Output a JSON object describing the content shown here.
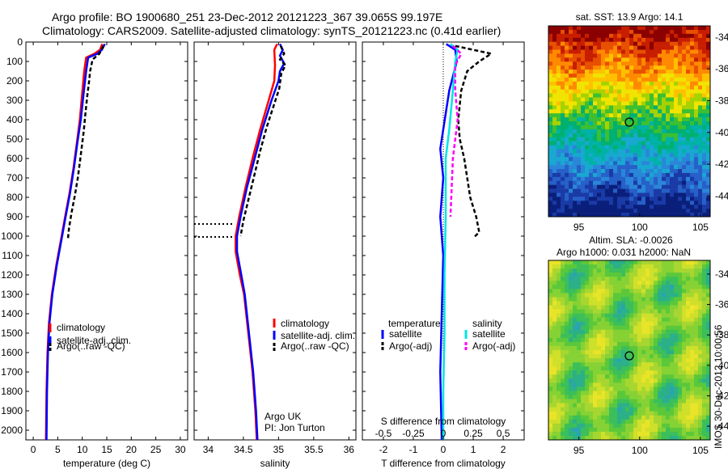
{
  "header": {
    "line1": "Argo profile: BO 1900680_251 23-Dec-2012 20121223_367 39.065S 99.197E",
    "line2": "Climatology: CARS2009. Satellite-adjusted climatology: synTS_20121223.nc (0.41d earlier)"
  },
  "colors": {
    "climatology": "#ff0000",
    "satellite": "#0000ff",
    "argo": "#000000",
    "sal_satellite": "#00e5e5",
    "sal_argo": "#ff00ff"
  },
  "depth_ticks": [
    "0",
    "100",
    "200",
    "300",
    "400",
    "500",
    "600",
    "700",
    "800",
    "900",
    "1000",
    "1100",
    "1200",
    "1300",
    "1400",
    "1500",
    "1600",
    "1700",
    "1800",
    "1900",
    "2000"
  ],
  "panels": {
    "temperature": {
      "xlabel": "temperature (deg C)",
      "ticks": [
        "0",
        "5",
        "10",
        "15",
        "20",
        "25",
        "30"
      ],
      "legend": [
        "climatology",
        "satellite-adj. clim.",
        "Argo(..raw -QC)"
      ]
    },
    "salinity": {
      "xlabel": "salinity",
      "ticks": [
        "34",
        "34.5",
        "35",
        "35.5",
        "36"
      ],
      "legend": [
        "climatology",
        "satellite-adj. clim.",
        "Argo(..raw -QC)"
      ],
      "annotation1": "Argo UK",
      "annotation2": "PI: Jon Turton"
    },
    "difference": {
      "xlabel": "T difference from climatology",
      "ticks": [
        "-2",
        "-1",
        "0",
        "1",
        "2"
      ],
      "top_label": "S difference from climatology",
      "top_ticks": [
        "-0.5",
        "-0.25",
        "0",
        "0.25",
        "0.5"
      ],
      "legend_t_title": "temperature",
      "legend_s_title": "salinity",
      "legend_t": [
        "satellite",
        "Argo(-adj)"
      ],
      "legend_s": [
        "satellite",
        "Argo(-adj)"
      ]
    }
  },
  "maps": {
    "sst_title": "sat. SST: 13.9 Argo: 14.1",
    "sla_title1": "Altim. SLA: -0.0026",
    "sla_title2": "Argo h1000: 0.031 h2000: NaN",
    "lat_ticks": [
      "-34",
      "-36",
      "-38",
      "-40",
      "-42",
      "-44"
    ],
    "lon_ticks": [
      "95",
      "100",
      "105"
    ],
    "side_text": "IMOS 30-Dec-2012 10:00:56"
  },
  "chart_data": [
    {
      "type": "line",
      "name": "temperature",
      "xlabel": "temperature (deg C)",
      "ylabel": "",
      "xlim": [
        -1.5,
        31.5
      ],
      "ylim": [
        2050,
        0
      ],
      "series": [
        {
          "name": "climatology",
          "color": "#ff0000",
          "points": [
            [
              14.1,
              10
            ],
            [
              13.6,
              40
            ],
            [
              12.5,
              60
            ],
            [
              10.8,
              80
            ],
            [
              10.4,
              150
            ],
            [
              10,
              260
            ],
            [
              9.5,
              400
            ],
            [
              8.9,
              520
            ],
            [
              8.2,
              650
            ],
            [
              7.4,
              780
            ],
            [
              6.5,
              900
            ],
            [
              5.8,
              1000
            ],
            [
              4.7,
              1150
            ],
            [
              3.8,
              1300
            ],
            [
              3.2,
              1450
            ],
            [
              2.9,
              1600
            ],
            [
              2.7,
              1800
            ],
            [
              2.6,
              2050
            ]
          ]
        },
        {
          "name": "satellite-adj. clim.",
          "color": "#0000ff",
          "points": [
            [
              14.6,
              10
            ],
            [
              14,
              40
            ],
            [
              13.1,
              60
            ],
            [
              11.2,
              80
            ],
            [
              10.8,
              150
            ],
            [
              10.3,
              260
            ],
            [
              9.7,
              400
            ],
            [
              9,
              520
            ],
            [
              8.3,
              650
            ],
            [
              7.5,
              780
            ],
            [
              6.6,
              900
            ],
            [
              5.9,
              1000
            ],
            [
              4.8,
              1150
            ],
            [
              3.9,
              1300
            ],
            [
              3.3,
              1450
            ],
            [
              3,
              1600
            ],
            [
              2.8,
              1800
            ],
            [
              2.7,
              2050
            ]
          ]
        },
        {
          "name": "Argo(..raw -QC)",
          "color": "#000000",
          "dashed": true,
          "points": [
            [
              14.3,
              20
            ],
            [
              13.5,
              60
            ],
            [
              12.1,
              90
            ],
            [
              11.6,
              150
            ],
            [
              11.4,
              200
            ],
            [
              11,
              280
            ],
            [
              10.6,
              380
            ],
            [
              10.3,
              460
            ],
            [
              9.9,
              540
            ],
            [
              9.5,
              620
            ],
            [
              9.1,
              700
            ],
            [
              8.5,
              790
            ],
            [
              7.8,
              880
            ],
            [
              7.3,
              960
            ],
            [
              7.1,
              1010
            ]
          ]
        }
      ]
    },
    {
      "type": "line",
      "name": "salinity",
      "xlabel": "salinity",
      "ylabel": "",
      "xlim": [
        33.8,
        36.1
      ],
      "ylim": [
        2050,
        0
      ],
      "series": [
        {
          "name": "climatology",
          "color": "#ff0000",
          "points": [
            [
              34.98,
              10
            ],
            [
              34.94,
              40
            ],
            [
              34.95,
              120
            ],
            [
              34.94,
              200
            ],
            [
              34.86,
              300
            ],
            [
              34.74,
              450
            ],
            [
              34.63,
              600
            ],
            [
              34.53,
              750
            ],
            [
              34.44,
              900
            ],
            [
              34.39,
              1000
            ],
            [
              34.39,
              1080
            ],
            [
              34.45,
              1200
            ],
            [
              34.51,
              1300
            ],
            [
              34.57,
              1500
            ],
            [
              34.63,
              1700
            ],
            [
              34.67,
              1900
            ],
            [
              34.69,
              2050
            ]
          ]
        },
        {
          "name": "satellite-adj. clim.",
          "color": "#0000ff",
          "points": [
            [
              35.02,
              10
            ],
            [
              35.06,
              40
            ],
            [
              35.02,
              70
            ],
            [
              35.08,
              110
            ],
            [
              35.02,
              150
            ],
            [
              35,
              200
            ],
            [
              34.9,
              300
            ],
            [
              34.77,
              450
            ],
            [
              34.66,
              600
            ],
            [
              34.55,
              750
            ],
            [
              34.46,
              900
            ],
            [
              34.41,
              1000
            ],
            [
              34.41,
              1080
            ],
            [
              34.47,
              1200
            ],
            [
              34.52,
              1300
            ],
            [
              34.58,
              1500
            ],
            [
              34.64,
              1700
            ],
            [
              34.68,
              1900
            ],
            [
              34.7,
              2050
            ]
          ]
        },
        {
          "name": "Argo(..raw -QC)",
          "color": "#000000",
          "dashed": true,
          "points": [
            [
              35.03,
              20
            ],
            [
              35.08,
              60
            ],
            [
              35.02,
              90
            ],
            [
              35.1,
              120
            ],
            [
              35.04,
              160
            ],
            [
              35.01,
              240
            ],
            [
              34.92,
              340
            ],
            [
              34.83,
              440
            ],
            [
              34.74,
              560
            ],
            [
              34.66,
              680
            ],
            [
              34.58,
              800
            ],
            [
              34.5,
              920
            ],
            [
              34.46,
              1000
            ]
          ]
        }
      ]
    },
    {
      "type": "line",
      "name": "difference",
      "xlabel": "T difference from climatology",
      "ylabel": "",
      "xlim": [
        -2.7,
        2.7
      ],
      "x2lim": [
        -0.675,
        0.675
      ],
      "ylim": [
        2050,
        0
      ],
      "series": [
        {
          "name": "temperature satellite",
          "color": "#0000ff",
          "points": [
            [
              0.1,
              10
            ],
            [
              0.4,
              40
            ],
            [
              0.45,
              100
            ],
            [
              0.2,
              250
            ],
            [
              0,
              450
            ],
            [
              -0.1,
              550
            ],
            [
              0,
              700
            ],
            [
              -0.1,
              900
            ],
            [
              0,
              1100
            ],
            [
              -0.05,
              1400
            ],
            [
              -0.1,
              1700
            ],
            [
              -0.05,
              2050
            ]
          ]
        },
        {
          "name": "temperature Argo(-adj)",
          "color": "#000000",
          "dashed": true,
          "points": [
            [
              0.4,
              20
            ],
            [
              1.6,
              60
            ],
            [
              1.2,
              100
            ],
            [
              0.8,
              150
            ],
            [
              0.6,
              250
            ],
            [
              0.5,
              400
            ],
            [
              0.55,
              500
            ],
            [
              0.7,
              600
            ],
            [
              0.8,
              700
            ],
            [
              0.9,
              800
            ],
            [
              1.1,
              900
            ],
            [
              1.2,
              980
            ],
            [
              1.0,
              1010
            ]
          ]
        },
        {
          "name": "salinity satellite",
          "color": "#00e5e5",
          "points": [
            [
              0.06,
              10
            ],
            [
              0.12,
              40
            ],
            [
              0.1,
              100
            ],
            [
              0.08,
              250
            ],
            [
              0.05,
              450
            ],
            [
              0.02,
              600
            ],
            [
              0.02,
              900
            ],
            [
              0.01,
              1200
            ],
            [
              0.01,
              1500
            ],
            [
              0,
              1800
            ],
            [
              0,
              2050
            ]
          ]
        },
        {
          "name": "salinity Argo(-adj)",
          "color": "#ff00ff",
          "dashed": true,
          "points": [
            [
              0.08,
              20
            ],
            [
              0.15,
              60
            ],
            [
              0.1,
              120
            ],
            [
              0.1,
              250
            ],
            [
              0.12,
              400
            ],
            [
              0.1,
              500
            ],
            [
              0.08,
              600
            ],
            [
              0.07,
              750
            ],
            [
              0.06,
              900
            ]
          ]
        }
      ]
    }
  ]
}
